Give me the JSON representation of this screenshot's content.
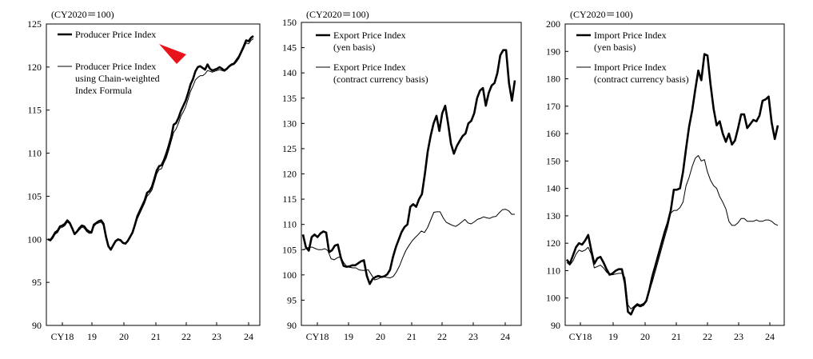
{
  "chart_data": [
    {
      "type": "line",
      "unit_label": "(CY2020＝100)",
      "x_tick_labels": [
        "CY18",
        "19",
        "20",
        "21",
        "22",
        "23",
        "24"
      ],
      "ylim": [
        90,
        125
      ],
      "y_ticks": [
        90,
        95,
        100,
        105,
        110,
        115,
        120,
        125
      ],
      "grid": false,
      "legend_position": "top-left",
      "series": [
        {
          "name": "Producer Price Index",
          "style": "thick",
          "values": [
            100.0,
            99.9,
            100.3,
            100.8,
            101.0,
            101.5,
            101.6,
            101.8,
            102.2,
            101.9,
            101.3,
            100.6,
            100.9,
            101.3,
            101.6,
            101.5,
            101.1,
            100.9,
            100.8,
            101.7,
            101.9,
            102.1,
            102.2,
            101.8,
            100.3,
            99.2,
            98.8,
            99.3,
            99.8,
            100.0,
            99.9,
            99.6,
            99.5,
            99.8,
            100.3,
            100.8,
            101.7,
            102.7,
            103.3,
            103.9,
            104.5,
            105.4,
            105.6,
            106.1,
            107.0,
            108.0,
            108.5,
            108.6,
            109.2,
            110.0,
            110.9,
            111.9,
            113.3,
            113.5,
            114.1,
            114.9,
            115.5,
            116.1,
            117.0,
            118.0,
            118.6,
            119.5,
            120.0,
            120.1,
            119.9,
            119.7,
            120.3,
            119.8,
            119.6,
            119.7,
            119.8,
            120.0,
            119.8,
            119.6,
            119.8,
            120.1,
            120.3,
            120.4,
            120.8,
            121.2,
            121.8,
            122.4,
            123.1,
            123.0,
            123.4,
            123.6
          ]
        },
        {
          "name": "Producer Price Index using Chain-weighted Index Formula",
          "style": "thin",
          "values": [
            100.0,
            99.8,
            100.1,
            100.6,
            100.8,
            101.3,
            101.4,
            101.6,
            102.0,
            101.8,
            101.2,
            100.6,
            100.8,
            101.1,
            101.4,
            101.3,
            100.9,
            100.7,
            100.7,
            101.5,
            101.8,
            101.9,
            102.0,
            101.6,
            100.1,
            99.1,
            98.8,
            99.2,
            99.7,
            99.9,
            99.8,
            99.5,
            99.5,
            99.7,
            100.2,
            100.7,
            101.5,
            102.4,
            103.0,
            103.6,
            104.2,
            105.0,
            105.3,
            105.7,
            106.6,
            107.6,
            108.1,
            108.2,
            108.9,
            109.5,
            110.4,
            111.4,
            112.4,
            112.8,
            113.5,
            114.3,
            114.8,
            115.4,
            116.3,
            117.2,
            117.8,
            118.5,
            118.8,
            119.0,
            119.0,
            119.2,
            119.6,
            119.5,
            119.4,
            119.5,
            119.6,
            119.7,
            119.6,
            119.5,
            119.7,
            120.0,
            120.2,
            120.3,
            120.6,
            121.0,
            121.6,
            122.2,
            122.8,
            122.7,
            123.1,
            123.3
          ]
        }
      ],
      "annotation": {
        "type": "arrowhead",
        "color": "#e8141c"
      }
    },
    {
      "type": "line",
      "unit_label": "(CY2020＝100)",
      "x_tick_labels": [
        "CY18",
        "19",
        "20",
        "21",
        "22",
        "23",
        "24"
      ],
      "ylim": [
        90,
        150
      ],
      "y_ticks": [
        90,
        95,
        100,
        105,
        110,
        115,
        120,
        125,
        130,
        135,
        140,
        145,
        150
      ],
      "grid": false,
      "legend_position": "top-left",
      "series": [
        {
          "name": "Export Price Index (yen basis)",
          "legend_lines": [
            "Export Price Index",
            "(yen basis)"
          ],
          "style": "thick",
          "values": [
            108.0,
            105.5,
            104.8,
            107.5,
            108.0,
            107.5,
            108.2,
            108.6,
            108.4,
            104.5,
            104.9,
            105.8,
            106.0,
            103.5,
            101.8,
            101.6,
            101.7,
            101.9,
            101.9,
            102.3,
            102.7,
            102.9,
            99.8,
            98.2,
            99.2,
            99.6,
            99.8,
            99.6,
            99.7,
            100.1,
            101.0,
            103.5,
            105.5,
            107.0,
            108.5,
            109.5,
            110.0,
            113.5,
            114.0,
            113.5,
            115.0,
            116.0,
            120.0,
            124.5,
            127.5,
            130.0,
            131.5,
            128.5,
            132.0,
            133.5,
            130.0,
            126.0,
            124.0,
            125.5,
            126.5,
            127.5,
            128.0,
            130.0,
            130.5,
            132.0,
            135.0,
            136.5,
            137.0,
            133.5,
            136.0,
            137.5,
            138.0,
            140.0,
            143.5,
            144.5,
            144.5,
            138.0,
            134.5,
            138.5
          ]
        },
        {
          "name": "Export Price Index (contract currency basis)",
          "legend_lines": [
            "Export Price Index",
            "(contract currency basis)"
          ],
          "style": "thin",
          "values": [
            105.0,
            105.2,
            105.5,
            105.5,
            105.2,
            105.0,
            105.0,
            105.2,
            104.8,
            103.2,
            103.0,
            103.4,
            103.6,
            102.5,
            101.7,
            101.5,
            101.4,
            101.4,
            101.0,
            100.9,
            100.9,
            101.0,
            100.0,
            99.0,
            99.2,
            99.5,
            99.6,
            99.5,
            99.4,
            99.7,
            100.6,
            101.8,
            103.4,
            104.8,
            105.8,
            106.7,
            107.4,
            108.0,
            108.7,
            108.4,
            109.4,
            110.9,
            112.4,
            112.5,
            112.5,
            111.3,
            110.4,
            110.1,
            109.8,
            109.6,
            110.0,
            110.5,
            111.0,
            110.3,
            110.1,
            110.5,
            111.0,
            111.2,
            111.5,
            111.3,
            111.2,
            111.5,
            111.6,
            112.3,
            112.9,
            113.0,
            112.7,
            112.0,
            112.0
          ]
        }
      ]
    },
    {
      "type": "line",
      "unit_label": "(CY2020＝100)",
      "x_tick_labels": [
        "CY18",
        "19",
        "20",
        "21",
        "22",
        "23",
        "24"
      ],
      "ylim": [
        90,
        200
      ],
      "y_ticks": [
        90,
        100,
        110,
        120,
        130,
        140,
        150,
        160,
        170,
        180,
        190,
        200
      ],
      "grid": false,
      "legend_position": "top-left",
      "series": [
        {
          "name": "Import Price Index (yen basis)",
          "legend_lines": [
            "Import Price Index",
            "(yen basis)"
          ],
          "style": "thick",
          "values": [
            114.0,
            112.5,
            115.5,
            118.5,
            120.0,
            119.5,
            121.0,
            123.0,
            117.5,
            112.5,
            114.5,
            115.0,
            113.0,
            110.5,
            108.5,
            109.0,
            110.0,
            110.5,
            110.5,
            105.5,
            95.0,
            94.0,
            96.5,
            97.5,
            97.0,
            97.5,
            99.0,
            103.0,
            108.0,
            112.0,
            116.0,
            120.0,
            124.0,
            127.5,
            132.0,
            139.5,
            139.5,
            140.0,
            146.0,
            154.5,
            162.5,
            168.5,
            176.0,
            183.0,
            179.5,
            189.0,
            188.5,
            178.0,
            169.0,
            163.0,
            164.5,
            160.0,
            157.0,
            160.0,
            156.0,
            157.5,
            162.0,
            167.0,
            167.0,
            162.0,
            163.5,
            165.0,
            164.5,
            166.5,
            172.0,
            172.5,
            173.5,
            164.0,
            158.0,
            163.0
          ]
        },
        {
          "name": "Import Price Index (contract currency basis)",
          "legend_lines": [
            "Import Price Index",
            "(contract currency basis)"
          ],
          "style": "thin",
          "values": [
            113.0,
            112.0,
            113.5,
            116.0,
            117.5,
            117.0,
            117.5,
            118.5,
            116.0,
            111.0,
            111.5,
            112.0,
            111.0,
            109.5,
            108.5,
            108.5,
            108.8,
            109.0,
            109.0,
            107.5,
            97.5,
            96.0,
            97.0,
            98.0,
            97.5,
            98.0,
            99.0,
            102.5,
            106.0,
            110.0,
            114.0,
            118.0,
            122.0,
            126.0,
            131.0,
            132.0,
            132.0,
            133.0,
            135.0,
            141.0,
            144.0,
            148.0,
            151.0,
            152.0,
            150.0,
            150.5,
            146.0,
            143.0,
            141.0,
            140.0,
            137.0,
            135.0,
            132.5,
            128.0,
            126.5,
            126.5,
            127.5,
            129.0,
            129.0,
            128.0,
            128.0,
            128.0,
            128.5,
            128.0,
            128.0,
            128.5,
            128.5,
            128.0,
            127.0,
            126.5
          ]
        }
      ]
    }
  ]
}
